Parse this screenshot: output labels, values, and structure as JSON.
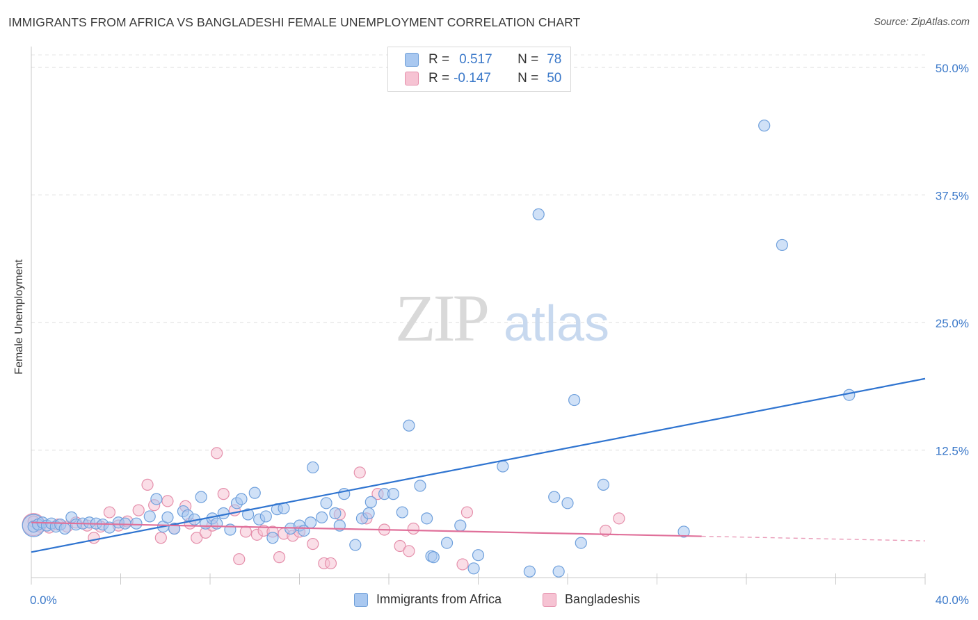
{
  "title": "IMMIGRANTS FROM AFRICA VS BANGLADESHI FEMALE UNEMPLOYMENT CORRELATION CHART",
  "source": "Source: ZipAtlas.com",
  "watermark": {
    "zip": "ZIP",
    "atlas": "atlas"
  },
  "legend_stats": [
    {
      "r_label": "R =",
      "r_value": "0.517",
      "n_label": "N =",
      "n_value": "78",
      "color": "#a9c8f0",
      "border": "#6f9fd8"
    },
    {
      "r_label": "R =",
      "r_value": "-0.147",
      "n_label": "N =",
      "n_value": "50",
      "color": "#f6c3d3",
      "border": "#e58fab"
    }
  ],
  "chart_data": {
    "type": "scatter",
    "xlabel": "",
    "ylabel": "Female Unemployment",
    "xlim": [
      0,
      40
    ],
    "ylim": [
      0,
      50
    ],
    "x_tick_labels": [
      "0.0%",
      "40.0%"
    ],
    "y_ticks": [
      12.5,
      25.0,
      37.5,
      50.0
    ],
    "y_tick_labels": [
      "12.5%",
      "25.0%",
      "37.5%",
      "50.0%"
    ],
    "grid": "horizontal dashed",
    "legend_position": "bottom-center",
    "series": [
      {
        "name": "Immigrants from Africa",
        "color": "#6fa0dc",
        "fill": "#a9c8f0",
        "trend_color": "#2f74d0",
        "trend": {
          "x0": 0,
          "y0": 2.5,
          "x1": 40,
          "y1": 19.5,
          "dashed_from": null
        },
        "points": [
          [
            0.1,
            5.0
          ],
          [
            0.3,
            5.2
          ],
          [
            0.5,
            5.4
          ],
          [
            0.7,
            5.1
          ],
          [
            0.9,
            5.3
          ],
          [
            1.1,
            5.0
          ],
          [
            1.3,
            5.2
          ],
          [
            1.5,
            4.8
          ],
          [
            1.8,
            5.9
          ],
          [
            2.0,
            5.2
          ],
          [
            2.3,
            5.3
          ],
          [
            2.6,
            5.4
          ],
          [
            2.9,
            5.3
          ],
          [
            3.2,
            5.2
          ],
          [
            3.5,
            4.9
          ],
          [
            3.9,
            5.4
          ],
          [
            4.2,
            5.3
          ],
          [
            4.7,
            5.3
          ],
          [
            5.3,
            6.0
          ],
          [
            5.6,
            7.7
          ],
          [
            5.9,
            5.0
          ],
          [
            6.1,
            5.9
          ],
          [
            6.4,
            4.8
          ],
          [
            6.8,
            6.5
          ],
          [
            7.0,
            6.1
          ],
          [
            7.3,
            5.7
          ],
          [
            7.6,
            7.9
          ],
          [
            7.8,
            5.3
          ],
          [
            8.1,
            5.8
          ],
          [
            8.3,
            5.3
          ],
          [
            8.6,
            6.3
          ],
          [
            8.9,
            4.7
          ],
          [
            9.2,
            7.3
          ],
          [
            9.4,
            7.7
          ],
          [
            9.7,
            6.2
          ],
          [
            10.0,
            8.3
          ],
          [
            10.2,
            5.7
          ],
          [
            10.5,
            6.0
          ],
          [
            10.8,
            3.9
          ],
          [
            11.0,
            6.7
          ],
          [
            11.3,
            6.8
          ],
          [
            11.6,
            4.8
          ],
          [
            12.0,
            5.1
          ],
          [
            12.2,
            4.6
          ],
          [
            12.5,
            5.4
          ],
          [
            12.6,
            10.8
          ],
          [
            13.0,
            5.9
          ],
          [
            13.2,
            7.3
          ],
          [
            13.6,
            6.3
          ],
          [
            13.8,
            5.1
          ],
          [
            14.0,
            8.2
          ],
          [
            14.5,
            3.2
          ],
          [
            14.8,
            5.8
          ],
          [
            15.1,
            6.3
          ],
          [
            15.2,
            7.4
          ],
          [
            15.8,
            8.2
          ],
          [
            16.2,
            8.2
          ],
          [
            16.6,
            6.4
          ],
          [
            16.9,
            14.9
          ],
          [
            17.4,
            9.0
          ],
          [
            17.7,
            5.8
          ],
          [
            17.9,
            2.1
          ],
          [
            18.0,
            2.0
          ],
          [
            18.6,
            3.4
          ],
          [
            19.2,
            5.1
          ],
          [
            19.8,
            0.9
          ],
          [
            20.0,
            2.2
          ],
          [
            21.1,
            10.9
          ],
          [
            22.3,
            0.6
          ],
          [
            22.7,
            35.6
          ],
          [
            23.4,
            7.9
          ],
          [
            23.6,
            0.6
          ],
          [
            24.0,
            7.3
          ],
          [
            24.3,
            17.4
          ],
          [
            24.6,
            3.4
          ],
          [
            25.6,
            9.1
          ],
          [
            29.2,
            4.5
          ],
          [
            32.8,
            44.3
          ],
          [
            33.6,
            32.6
          ],
          [
            36.6,
            17.9
          ]
        ],
        "large_points": [
          [
            0.1,
            5.1
          ]
        ]
      },
      {
        "name": "Bangladeshis",
        "color": "#e58fab",
        "fill": "#f6c3d3",
        "trend_color": "#e0709a",
        "trend": {
          "x0": 0,
          "y0": 5.4,
          "x1": 40,
          "y1": 3.6,
          "dashed_from": 30.0
        },
        "points": [
          [
            0.1,
            5.5
          ],
          [
            0.4,
            5.0
          ],
          [
            0.8,
            4.9
          ],
          [
            1.2,
            5.2
          ],
          [
            1.6,
            5.0
          ],
          [
            2.0,
            5.4
          ],
          [
            2.5,
            5.1
          ],
          [
            2.8,
            3.9
          ],
          [
            3.1,
            5.0
          ],
          [
            3.5,
            6.4
          ],
          [
            3.9,
            5.1
          ],
          [
            4.3,
            5.5
          ],
          [
            4.8,
            6.6
          ],
          [
            5.2,
            9.1
          ],
          [
            5.5,
            7.1
          ],
          [
            5.8,
            3.9
          ],
          [
            6.1,
            7.5
          ],
          [
            6.4,
            4.8
          ],
          [
            6.9,
            7.0
          ],
          [
            7.1,
            5.3
          ],
          [
            7.4,
            3.9
          ],
          [
            7.8,
            4.4
          ],
          [
            8.1,
            5.1
          ],
          [
            8.3,
            12.2
          ],
          [
            8.6,
            8.2
          ],
          [
            9.1,
            6.6
          ],
          [
            9.3,
            1.8
          ],
          [
            9.6,
            4.5
          ],
          [
            10.1,
            4.2
          ],
          [
            10.4,
            4.6
          ],
          [
            10.8,
            4.5
          ],
          [
            11.1,
            2.0
          ],
          [
            11.3,
            4.3
          ],
          [
            11.7,
            4.1
          ],
          [
            12.0,
            4.5
          ],
          [
            12.6,
            3.3
          ],
          [
            13.1,
            1.4
          ],
          [
            13.4,
            1.4
          ],
          [
            13.8,
            6.2
          ],
          [
            14.7,
            10.3
          ],
          [
            15.0,
            5.8
          ],
          [
            15.5,
            8.2
          ],
          [
            15.8,
            4.7
          ],
          [
            16.5,
            3.1
          ],
          [
            16.9,
            2.6
          ],
          [
            17.1,
            4.8
          ],
          [
            19.3,
            1.3
          ],
          [
            19.5,
            6.4
          ],
          [
            25.7,
            4.6
          ],
          [
            26.3,
            5.8
          ]
        ],
        "large_points": [
          [
            0.1,
            5.2
          ]
        ]
      }
    ]
  }
}
